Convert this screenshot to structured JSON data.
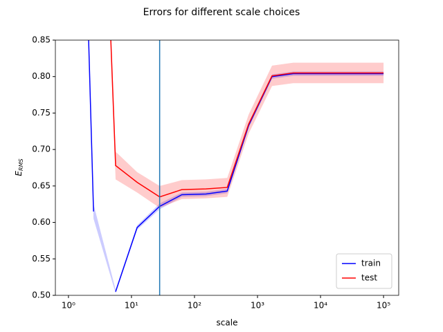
{
  "chart_data": {
    "type": "line",
    "title": "Errors for different scale choices",
    "xlabel": "scale",
    "ylabel": {
      "base": "E",
      "sub": "RMS"
    },
    "xscale": "log",
    "x": [
      2.09,
      2.5,
      4.7,
      5.6,
      12.3,
      28,
      63,
      152,
      331,
      724,
      1700,
      3700,
      100000
    ],
    "series": [
      {
        "name": "train",
        "color": "#0000ff",
        "values": [
          0.85,
          0.615,
          null,
          0.505,
          0.593,
          0.622,
          0.638,
          0.639,
          0.643,
          0.733,
          0.8,
          0.804,
          0.804
        ],
        "lower": [
          0.846,
          0.605,
          null,
          0.503,
          0.59,
          0.618,
          0.635,
          0.636,
          0.64,
          0.73,
          0.797,
          0.801,
          0.801
        ],
        "upper": [
          0.854,
          0.625,
          null,
          0.508,
          0.596,
          0.626,
          0.641,
          0.642,
          0.646,
          0.736,
          0.803,
          0.807,
          0.807
        ]
      },
      {
        "name": "test",
        "color": "#ff0000",
        "values": [
          null,
          null,
          0.85,
          0.678,
          0.655,
          0.635,
          0.645,
          0.646,
          0.648,
          0.735,
          0.801,
          0.805,
          0.805
        ],
        "lower": [
          null,
          null,
          0.83,
          0.659,
          0.641,
          0.62,
          0.632,
          0.633,
          0.635,
          0.722,
          0.787,
          0.791,
          0.791
        ],
        "upper": [
          null,
          null,
          0.87,
          0.697,
          0.669,
          0.65,
          0.658,
          0.659,
          0.661,
          0.748,
          0.815,
          0.819,
          0.819
        ]
      }
    ],
    "vline": {
      "x": 28,
      "color": "#1f77b4"
    },
    "xlim": [
      0.62,
      174000
    ],
    "ylim": [
      0.5,
      0.85
    ],
    "xticks": [
      {
        "value": 1,
        "label": "10⁰"
      },
      {
        "value": 10,
        "label": "10¹"
      },
      {
        "value": 100,
        "label": "10²"
      },
      {
        "value": 1000,
        "label": "10³"
      },
      {
        "value": 10000,
        "label": "10⁴"
      },
      {
        "value": 100000,
        "label": "10⁵"
      }
    ],
    "yticks": [
      {
        "value": 0.5,
        "label": "0.50"
      },
      0.55,
      {
        "value": 0.6,
        "label": "0.60"
      },
      0.65,
      {
        "value": 0.7,
        "label": "0.70"
      },
      0.75,
      {
        "value": 0.8,
        "label": "0.80"
      },
      0.85
    ],
    "legend": "lower right",
    "grid": false
  }
}
